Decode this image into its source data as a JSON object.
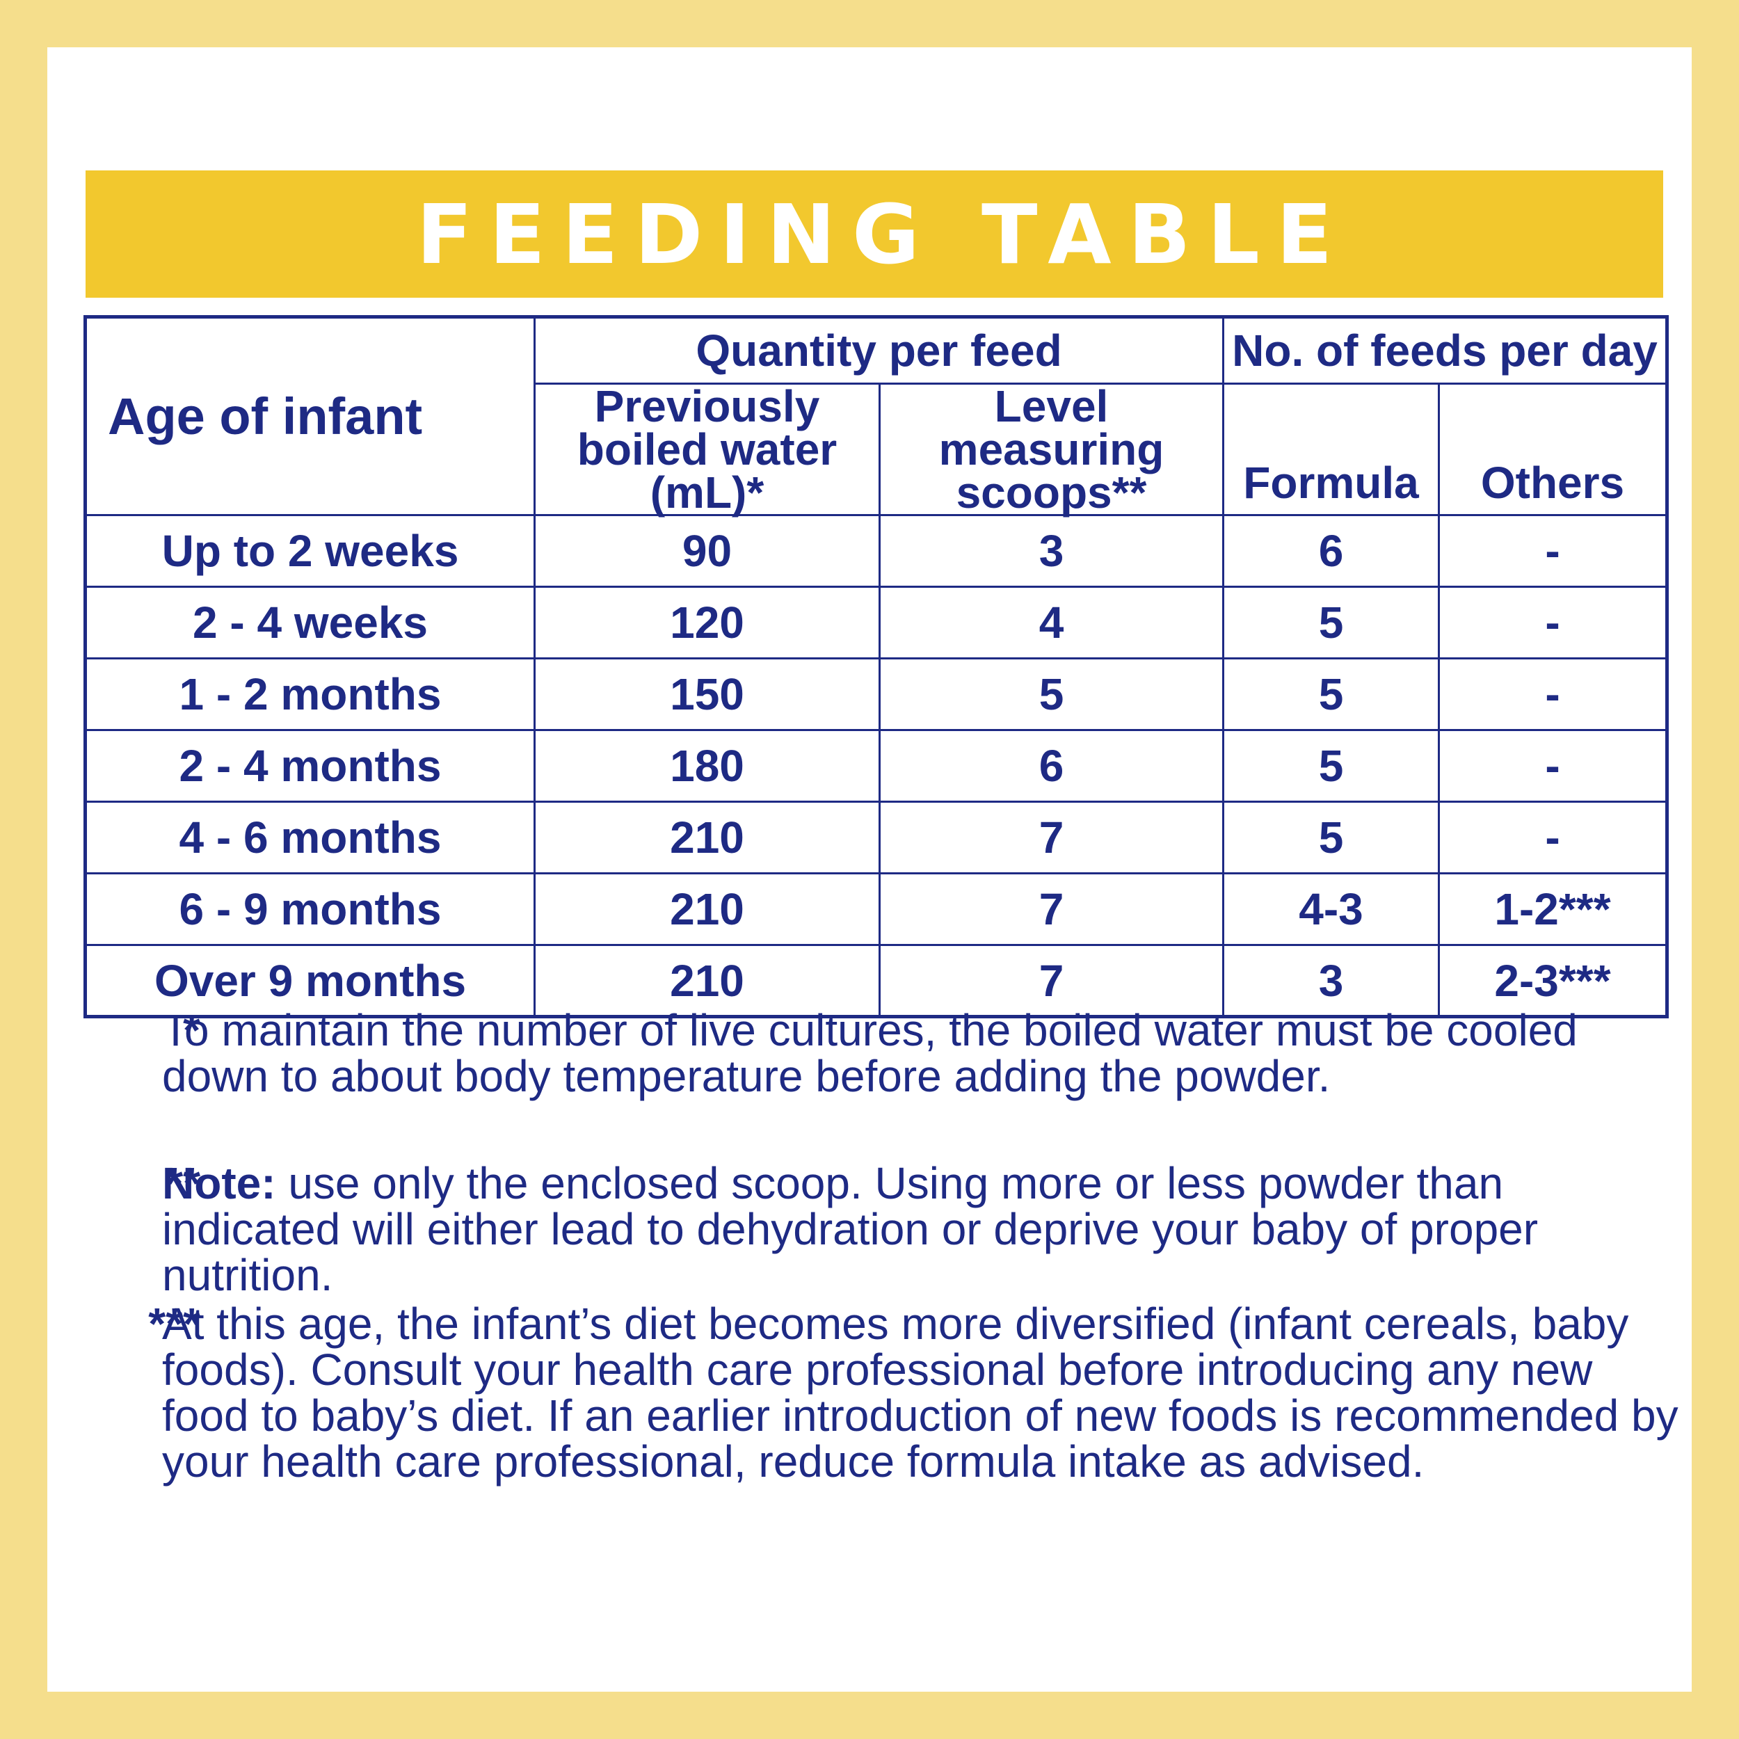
{
  "title": "FEEDING TABLE",
  "table": {
    "group_headers": {
      "quantity": "Quantity per feed",
      "feeds": "No. of feeds per day"
    },
    "column_headers": {
      "age": "Age of infant",
      "water": "Previously boiled water (mL)*",
      "scoops": "Level measuring scoops**",
      "formula": "Formula",
      "others": "Others"
    },
    "rows": [
      {
        "age": "Up to 2 weeks",
        "water": "90",
        "scoops": "3",
        "formula": "6",
        "others": "-"
      },
      {
        "age": "2 - 4 weeks",
        "water": "120",
        "scoops": "4",
        "formula": "5",
        "others": "-"
      },
      {
        "age": "1 - 2 months",
        "water": "150",
        "scoops": "5",
        "formula": "5",
        "others": "-"
      },
      {
        "age": "2 - 4 months",
        "water": "180",
        "scoops": "6",
        "formula": "5",
        "others": "-"
      },
      {
        "age": "4 - 6 months",
        "water": "210",
        "scoops": "7",
        "formula": "5",
        "others": "-"
      },
      {
        "age": "6 - 9 months",
        "water": "210",
        "scoops": "7",
        "formula": "4-3",
        "others": "1-2***"
      },
      {
        "age": "Over 9 months",
        "water": "210",
        "scoops": "7",
        "formula": "3",
        "others": "2-3***"
      }
    ]
  },
  "notes": [
    {
      "mark": "*",
      "lead": "",
      "text": "To maintain the number of live cultures, the boiled water must be cooled down to about body temperature before adding the powder."
    },
    {
      "mark": "**",
      "lead": "Note:",
      "text": " use only the enclosed scoop. Using more or less powder than indicated will either lead to dehydration or deprive your baby of proper nutrition."
    },
    {
      "mark": "***",
      "lead": "",
      "text": "At this age, the infant’s diet becomes more diversified (infant cereals, baby foods). Consult your health care professional before introducing any new food to baby’s diet. If an earlier introduction of new foods is recommended by your health care professional, reduce formula intake as advised."
    }
  ],
  "colors": {
    "background": "#f5de8c",
    "banner": "#f2c82e",
    "text": "#1e2a84"
  }
}
